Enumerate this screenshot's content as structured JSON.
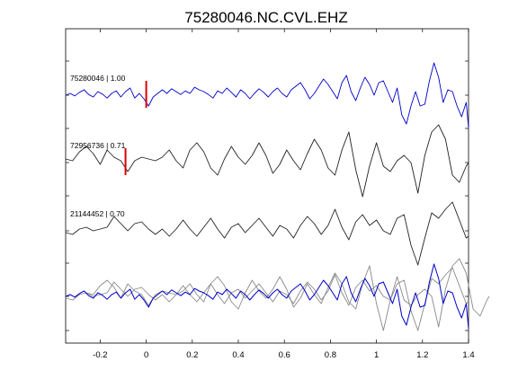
{
  "chart_data": {
    "type": "line",
    "title": "75280046.NC.CVL.EHZ",
    "xlabel": "",
    "ylabel": "",
    "xlim": [
      -0.35,
      1.4
    ],
    "x_ticks": [
      "-0.2",
      "0",
      "0.2",
      "0.4",
      "0.6",
      "0.8",
      "1",
      "1.2",
      "1.4"
    ],
    "x_tick_values": [
      -0.2,
      0,
      0.2,
      0.4,
      0.6,
      0.8,
      1.0,
      1.2,
      1.4
    ],
    "grid": false,
    "colors": {
      "master": "#0000cc",
      "trace": "#222222",
      "overlay": "#888888",
      "pick": "#dd0000"
    },
    "series": [
      {
        "label": "75280046 | 1.00",
        "color": "#0000cc",
        "pick_x": 0.0,
        "x": [
          -0.35,
          -0.33,
          -0.31,
          -0.29,
          -0.27,
          -0.25,
          -0.23,
          -0.21,
          -0.19,
          -0.17,
          -0.15,
          -0.13,
          -0.11,
          -0.09,
          -0.07,
          -0.05,
          -0.03,
          -0.01,
          0.01,
          0.03,
          0.05,
          0.07,
          0.09,
          0.11,
          0.13,
          0.15,
          0.17,
          0.19,
          0.21,
          0.23,
          0.25,
          0.27,
          0.29,
          0.31,
          0.33,
          0.35,
          0.37,
          0.39,
          0.41,
          0.43,
          0.45,
          0.47,
          0.49,
          0.51,
          0.53,
          0.55,
          0.57,
          0.59,
          0.61,
          0.63,
          0.65,
          0.67,
          0.69,
          0.71,
          0.73,
          0.75,
          0.77,
          0.79,
          0.81,
          0.83,
          0.85,
          0.87,
          0.89,
          0.91,
          0.93,
          0.95,
          0.97,
          0.99,
          1.01,
          1.03,
          1.05,
          1.07,
          1.09,
          1.11,
          1.13,
          1.15,
          1.17,
          1.19,
          1.21,
          1.23,
          1.25,
          1.27,
          1.29,
          1.31,
          1.33,
          1.35,
          1.37,
          1.39,
          1.4
        ],
        "y": [
          0.0,
          0.05,
          -0.02,
          0.08,
          0.15,
          0.02,
          -0.05,
          0.1,
          0.03,
          -0.08,
          0.05,
          0.12,
          -0.05,
          0.1,
          0.2,
          -0.08,
          0.05,
          -0.1,
          -0.3,
          -0.05,
          0.05,
          0.15,
          0.05,
          0.18,
          0.1,
          0.02,
          0.12,
          0.05,
          0.22,
          0.15,
          0.1,
          0.02,
          -0.08,
          0.12,
          0.05,
          0.2,
          0.08,
          -0.05,
          0.15,
          0.05,
          -0.1,
          0.05,
          0.18,
          0.08,
          -0.05,
          0.1,
          0.2,
          0.05,
          -0.05,
          0.15,
          0.25,
          0.35,
          0.15,
          -0.1,
          0.05,
          0.25,
          0.45,
          0.3,
          0.1,
          -0.1,
          0.35,
          0.55,
          0.1,
          -0.15,
          0.2,
          0.5,
          0.3,
          0.0,
          0.35,
          0.4,
          0.1,
          -0.2,
          0.2,
          -0.55,
          -0.8,
          -0.3,
          0.1,
          -0.3,
          -0.25,
          0.4,
          0.9,
          0.5,
          -0.2,
          0.15,
          0.1,
          -0.3,
          -0.6,
          -0.2,
          -0.9
        ]
      },
      {
        "label": "72956736 | 0.71",
        "color": "#222222",
        "pick_x": -0.09,
        "x": [
          -0.35,
          -0.32,
          -0.29,
          -0.26,
          -0.23,
          -0.2,
          -0.17,
          -0.14,
          -0.11,
          -0.08,
          -0.05,
          -0.02,
          0.01,
          0.04,
          0.07,
          0.1,
          0.13,
          0.16,
          0.19,
          0.22,
          0.25,
          0.28,
          0.31,
          0.34,
          0.37,
          0.4,
          0.43,
          0.46,
          0.49,
          0.52,
          0.55,
          0.58,
          0.61,
          0.64,
          0.67,
          0.7,
          0.73,
          0.76,
          0.79,
          0.82,
          0.85,
          0.88,
          0.91,
          0.94,
          0.97,
          1.0,
          1.03,
          1.06,
          1.09,
          1.12,
          1.15,
          1.18,
          1.21,
          1.24,
          1.27,
          1.3,
          1.33,
          1.36,
          1.39,
          1.4
        ],
        "y": [
          0.1,
          0.05,
          0.3,
          0.45,
          0.25,
          -0.05,
          0.35,
          0.15,
          0.05,
          -0.25,
          0.05,
          0.15,
          0.1,
          0.05,
          0.15,
          0.35,
          0.05,
          -0.15,
          0.35,
          0.55,
          0.3,
          -0.15,
          -0.35,
          0.1,
          0.45,
          0.15,
          -0.05,
          0.2,
          0.55,
          0.2,
          -0.3,
          -0.05,
          0.35,
          0.05,
          -0.2,
          0.25,
          0.65,
          0.35,
          -0.15,
          -0.35,
          0.35,
          0.85,
          -0.2,
          -0.95,
          -0.1,
          0.55,
          -0.1,
          -0.25,
          0.05,
          0.2,
          0.0,
          -0.85,
          0.2,
          0.85,
          1.05,
          0.65,
          -0.35,
          -0.55,
          -0.1,
          0.0
        ]
      },
      {
        "label": "21144452 | 0.70",
        "color": "#222222",
        "pick_x": null,
        "x": [
          -0.35,
          -0.32,
          -0.29,
          -0.26,
          -0.23,
          -0.2,
          -0.17,
          -0.14,
          -0.11,
          -0.08,
          -0.05,
          -0.02,
          0.01,
          0.04,
          0.07,
          0.1,
          0.13,
          0.16,
          0.19,
          0.22,
          0.25,
          0.28,
          0.31,
          0.34,
          0.37,
          0.4,
          0.43,
          0.46,
          0.49,
          0.52,
          0.55,
          0.58,
          0.61,
          0.64,
          0.67,
          0.7,
          0.73,
          0.76,
          0.79,
          0.82,
          0.85,
          0.88,
          0.91,
          0.94,
          0.97,
          1.0,
          1.03,
          1.06,
          1.09,
          1.12,
          1.15,
          1.18,
          1.21,
          1.24,
          1.27,
          1.3,
          1.33,
          1.36,
          1.39,
          1.4
        ],
        "y": [
          -0.05,
          -0.1,
          0.05,
          0.1,
          0.0,
          0.05,
          0.1,
          0.4,
          0.2,
          0.0,
          0.2,
          0.25,
          0.05,
          -0.1,
          0.05,
          -0.15,
          0.05,
          0.3,
          0.05,
          -0.15,
          0.1,
          0.35,
          0.05,
          -0.2,
          0.1,
          0.2,
          -0.05,
          0.15,
          0.35,
          0.1,
          -0.15,
          0.15,
          0.05,
          -0.2,
          0.15,
          0.4,
          0.2,
          -0.1,
          0.15,
          0.6,
          0.1,
          -0.25,
          0.25,
          0.45,
          0.15,
          0.3,
          0.0,
          -0.1,
          0.35,
          0.45,
          -0.4,
          -0.95,
          -0.2,
          0.5,
          0.35,
          0.6,
          0.8,
          0.3,
          -0.2,
          -0.15
        ]
      }
    ],
    "overlay_count": 3
  }
}
